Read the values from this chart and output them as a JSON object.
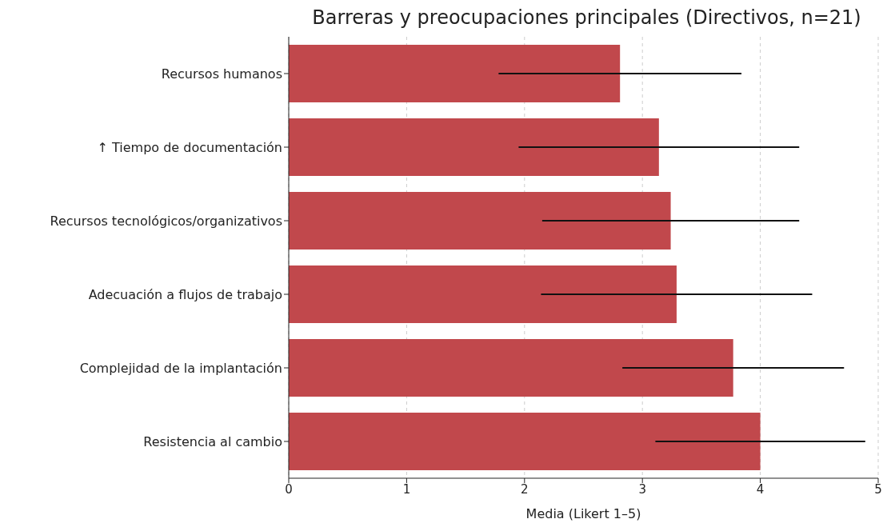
{
  "chart_data": {
    "type": "bar",
    "orientation": "horizontal",
    "title": "Barreras y preocupaciones principales (Directivos, n=21)",
    "xlabel": "Media (Likert 1–5)",
    "categories": [
      "Recursos humanos",
      "↑ Tiempo de documentación",
      "Recursos tecnológicos/organizativos",
      "Adecuación a flujos de trabajo",
      "Complejidad de la implantación",
      "Resistencia al cambio"
    ],
    "values": [
      2.81,
      3.14,
      3.24,
      3.29,
      3.77,
      4.0
    ],
    "errors": [
      1.03,
      1.19,
      1.09,
      1.15,
      0.94,
      0.89
    ],
    "color": "#c1484c",
    "xlim": [
      0,
      5
    ],
    "xticks": [
      0,
      1,
      2,
      3,
      4,
      5
    ],
    "grid": "x"
  }
}
